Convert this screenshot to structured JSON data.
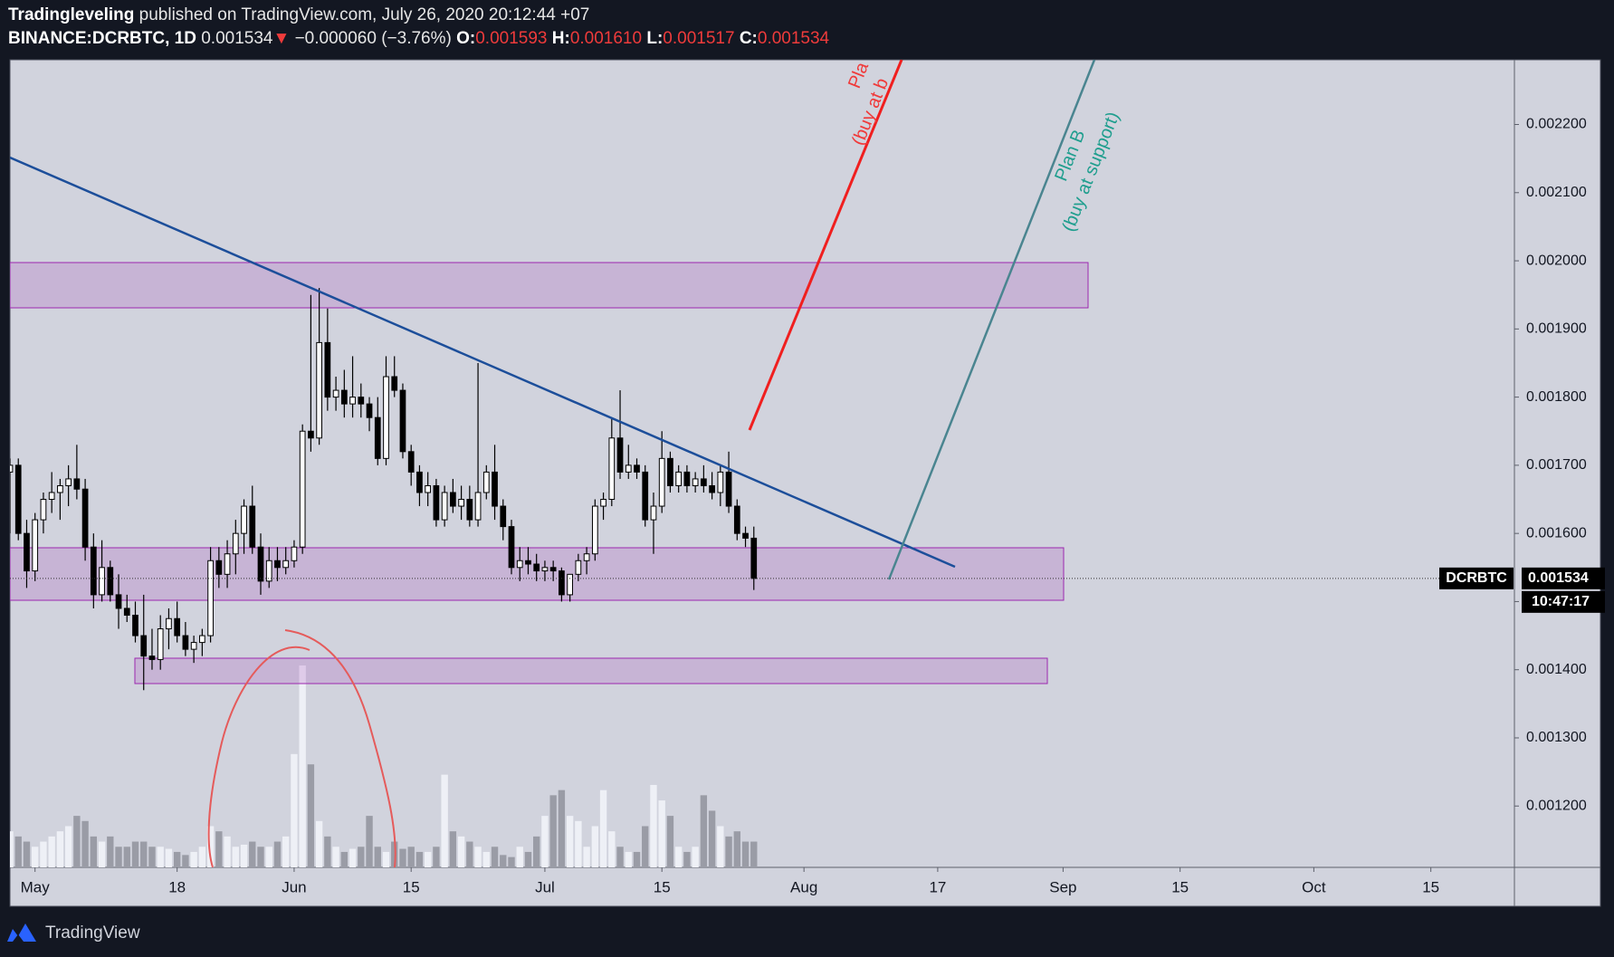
{
  "header": {
    "author": "Tradingleveling",
    "published": "published on TradingView.com, July 26, 2020 20:12:44 +07",
    "symbol": "BINANCE:DCRBTC, 1D",
    "price": "0.001534",
    "arrow": "▼",
    "change": "−0.000060 (−3.76%)",
    "o_label": "O:",
    "o": "0.001593",
    "h_label": "H:",
    "h": "0.001610",
    "l_label": "L:",
    "l": "0.001517",
    "c_label": "C:",
    "c": "0.001534"
  },
  "chart_data": {
    "type": "candlestick",
    "x": [
      "2020-04-28",
      "2020-04-29",
      "2020-04-30",
      "2020-05-01",
      "2020-05-02",
      "2020-05-03",
      "2020-05-04",
      "2020-05-05",
      "2020-05-06",
      "2020-05-07",
      "2020-05-08",
      "2020-05-09",
      "2020-05-10",
      "2020-05-11",
      "2020-05-12",
      "2020-05-13",
      "2020-05-14",
      "2020-05-15",
      "2020-05-16",
      "2020-05-17",
      "2020-05-18",
      "2020-05-19",
      "2020-05-20",
      "2020-05-21",
      "2020-05-22",
      "2020-05-23",
      "2020-05-24",
      "2020-05-25",
      "2020-05-26",
      "2020-05-27",
      "2020-05-28",
      "2020-05-29",
      "2020-05-30",
      "2020-05-31",
      "2020-06-01",
      "2020-06-02",
      "2020-06-03",
      "2020-06-04",
      "2020-06-05",
      "2020-06-06",
      "2020-06-07",
      "2020-06-08",
      "2020-06-09",
      "2020-06-10",
      "2020-06-11",
      "2020-06-12",
      "2020-06-13",
      "2020-06-14",
      "2020-06-15",
      "2020-06-16",
      "2020-06-17",
      "2020-06-18",
      "2020-06-19",
      "2020-06-20",
      "2020-06-21",
      "2020-06-22",
      "2020-06-23",
      "2020-06-24",
      "2020-06-25",
      "2020-06-26",
      "2020-06-27",
      "2020-06-28",
      "2020-06-29",
      "2020-06-30",
      "2020-07-01",
      "2020-07-02",
      "2020-07-03",
      "2020-07-04",
      "2020-07-05",
      "2020-07-06",
      "2020-07-07",
      "2020-07-08",
      "2020-07-09",
      "2020-07-10",
      "2020-07-11",
      "2020-07-12",
      "2020-07-13",
      "2020-07-14",
      "2020-07-15",
      "2020-07-16",
      "2020-07-17",
      "2020-07-18",
      "2020-07-19",
      "2020-07-20",
      "2020-07-21",
      "2020-07-22",
      "2020-07-23",
      "2020-07-24",
      "2020-07-25",
      "2020-07-26"
    ],
    "open": [
      0.00169,
      0.0017,
      0.0016,
      0.001545,
      0.00162,
      0.00165,
      0.00166,
      0.00167,
      0.00168,
      0.001665,
      0.00158,
      0.00151,
      0.00155,
      0.00151,
      0.00149,
      0.00148,
      0.00145,
      0.00142,
      0.001415,
      0.00146,
      0.001475,
      0.00145,
      0.00143,
      0.00144,
      0.00145,
      0.00156,
      0.00154,
      0.00157,
      0.0016,
      0.00164,
      0.00158,
      0.00153,
      0.00156,
      0.00155,
      0.00156,
      0.00158,
      0.00175,
      0.00174,
      0.00188,
      0.0018,
      0.00181,
      0.00179,
      0.0018,
      0.00179,
      0.00177,
      0.00171,
      0.00183,
      0.00181,
      0.00172,
      0.00169,
      0.00166,
      0.00167,
      0.00162,
      0.00166,
      0.00164,
      0.00165,
      0.00162,
      0.00166,
      0.00169,
      0.00164,
      0.00161,
      0.00155,
      0.00156,
      0.001555,
      0.001545,
      0.00155,
      0.001545,
      0.00151,
      0.00154,
      0.00156,
      0.00157,
      0.00164,
      0.00165,
      0.00174,
      0.00169,
      0.0017,
      0.00169,
      0.00162,
      0.00164,
      0.00171,
      0.00167,
      0.00169,
      0.00167,
      0.00168,
      0.00167,
      0.00166,
      0.00169,
      0.00164,
      0.0016,
      0.001593
    ],
    "high": [
      0.00171,
      0.00171,
      0.00162,
      0.00163,
      0.00166,
      0.00169,
      0.00168,
      0.0017,
      0.00173,
      0.00168,
      0.0016,
      0.00159,
      0.00156,
      0.00154,
      0.00151,
      0.0015,
      0.00151,
      0.00146,
      0.00148,
      0.00149,
      0.0015,
      0.00147,
      0.00145,
      0.00146,
      0.00158,
      0.00158,
      0.00159,
      0.00162,
      0.00165,
      0.00167,
      0.0016,
      0.00158,
      0.00158,
      0.00158,
      0.00159,
      0.00176,
      0.00195,
      0.00196,
      0.00193,
      0.00183,
      0.00184,
      0.00186,
      0.00182,
      0.0018,
      0.0018,
      0.00186,
      0.00186,
      0.00182,
      0.00173,
      0.0017,
      0.00169,
      0.00168,
      0.00167,
      0.00168,
      0.00167,
      0.00167,
      0.00185,
      0.0017,
      0.00173,
      0.00165,
      0.00162,
      0.00158,
      0.00158,
      0.00157,
      0.00156,
      0.00156,
      0.00155,
      0.00154,
      0.00157,
      0.00158,
      0.00165,
      0.00166,
      0.00177,
      0.00181,
      0.00173,
      0.00171,
      0.0017,
      0.00166,
      0.00175,
      0.00172,
      0.0017,
      0.0017,
      0.00169,
      0.0017,
      0.00169,
      0.0017,
      0.00172,
      0.00165,
      0.00161,
      0.00161
    ],
    "low": [
      0.0016,
      0.00159,
      0.00152,
      0.00153,
      0.0016,
      0.00163,
      0.00162,
      0.00164,
      0.00165,
      0.00156,
      0.00149,
      0.0015,
      0.0015,
      0.00146,
      0.00147,
      0.00144,
      0.00137,
      0.0014,
      0.0014,
      0.00143,
      0.00144,
      0.00142,
      0.00141,
      0.00142,
      0.00144,
      0.00152,
      0.00152,
      0.00154,
      0.00157,
      0.00157,
      0.00151,
      0.00152,
      0.00153,
      0.00154,
      0.00155,
      0.00157,
      0.00172,
      0.00173,
      0.00178,
      0.00178,
      0.00177,
      0.00177,
      0.00177,
      0.00175,
      0.0017,
      0.0017,
      0.0018,
      0.00171,
      0.00167,
      0.00164,
      0.00164,
      0.00161,
      0.00161,
      0.00163,
      0.00162,
      0.00161,
      0.00161,
      0.00165,
      0.00162,
      0.00159,
      0.00154,
      0.00153,
      0.00154,
      0.00153,
      0.00153,
      0.00153,
      0.0015,
      0.0015,
      0.00153,
      0.00154,
      0.00156,
      0.00162,
      0.00164,
      0.00168,
      0.00168,
      0.00168,
      0.00161,
      0.00157,
      0.00163,
      0.00166,
      0.00166,
      0.00166,
      0.00166,
      0.00166,
      0.00165,
      0.00164,
      0.00163,
      0.00159,
      0.00158,
      0.001517
    ],
    "close": [
      0.0017,
      0.0016,
      0.001545,
      0.00162,
      0.00165,
      0.00166,
      0.00167,
      0.00168,
      0.001665,
      0.00158,
      0.00151,
      0.00155,
      0.00151,
      0.00149,
      0.00148,
      0.00145,
      0.00142,
      0.001415,
      0.00146,
      0.001475,
      0.00145,
      0.00143,
      0.00144,
      0.00145,
      0.00156,
      0.00154,
      0.00157,
      0.0016,
      0.00164,
      0.00158,
      0.00153,
      0.00156,
      0.00155,
      0.00156,
      0.00158,
      0.00175,
      0.00174,
      0.00188,
      0.0018,
      0.00181,
      0.00179,
      0.0018,
      0.00179,
      0.00177,
      0.00171,
      0.00183,
      0.00181,
      0.00172,
      0.00169,
      0.00166,
      0.00167,
      0.00162,
      0.00166,
      0.00164,
      0.00165,
      0.00162,
      0.00166,
      0.00169,
      0.00164,
      0.00161,
      0.00155,
      0.00156,
      0.001555,
      0.001545,
      0.00155,
      0.001545,
      0.00151,
      0.00154,
      0.00156,
      0.00157,
      0.00164,
      0.00165,
      0.00174,
      0.00169,
      0.0017,
      0.00169,
      0.00162,
      0.00164,
      0.00171,
      0.00167,
      0.00169,
      0.00167,
      0.00168,
      0.00167,
      0.00166,
      0.00169,
      0.00164,
      0.0016,
      0.001593,
      0.001534
    ],
    "volume": [
      35,
      30,
      25,
      20,
      25,
      30,
      35,
      40,
      50,
      45,
      30,
      25,
      30,
      20,
      20,
      25,
      25,
      20,
      20,
      18,
      15,
      12,
      15,
      20,
      40,
      35,
      30,
      20,
      22,
      25,
      20,
      20,
      25,
      30,
      110,
      196,
      100,
      45,
      30,
      20,
      15,
      18,
      20,
      50,
      20,
      15,
      25,
      18,
      20,
      15,
      15,
      20,
      90,
      35,
      30,
      25,
      20,
      15,
      20,
      12,
      10,
      20,
      15,
      30,
      50,
      70,
      75,
      50,
      45,
      20,
      40,
      75,
      35,
      20,
      15,
      15,
      40,
      80,
      65,
      50,
      20,
      15,
      20,
      70,
      55,
      40,
      30,
      35,
      25,
      25
    ],
    "xlim": [
      "2020-04-28",
      "2020-10-25"
    ],
    "xticks": [
      {
        "value": "2020-05-01",
        "label": "May"
      },
      {
        "value": "2020-05-18",
        "label": "18"
      },
      {
        "value": "2020-06-01",
        "label": "Jun"
      },
      {
        "value": "2020-06-15",
        "label": "15"
      },
      {
        "value": "2020-07-01",
        "label": "Jul"
      },
      {
        "value": "2020-07-15",
        "label": "15"
      },
      {
        "value": "2020-08-01",
        "label": "Aug"
      },
      {
        "value": "2020-08-17",
        "label": "17"
      },
      {
        "value": "2020-09-01",
        "label": "Sep"
      },
      {
        "value": "2020-09-15",
        "label": "15"
      },
      {
        "value": "2020-10-01",
        "label": "Oct"
      },
      {
        "value": "2020-10-15",
        "label": "15"
      }
    ],
    "ylim": [
      0.00111,
      0.002295
    ],
    "yticks": [
      {
        "value": 0.0012,
        "label": "0.001200"
      },
      {
        "value": 0.0013,
        "label": "0.001300"
      },
      {
        "value": 0.0014,
        "label": "0.001400"
      },
      {
        "value": 0.0015,
        "label": "0.001500"
      },
      {
        "value": 0.0016,
        "label": "0.001600"
      },
      {
        "value": 0.0017,
        "label": "0.001700"
      },
      {
        "value": 0.0018,
        "label": "0.001800"
      },
      {
        "value": 0.0019,
        "label": "0.001900"
      },
      {
        "value": 0.002,
        "label": "0.002000"
      },
      {
        "value": 0.0021,
        "label": "0.002100"
      },
      {
        "value": 0.0022,
        "label": "0.002200"
      }
    ],
    "up_color": "#ffffff",
    "down_color": "#000000",
    "up_volume_color": "#eef0f6",
    "down_volume_color": "#9a9ca6",
    "price_tag": {
      "symbol": "DCRBTC",
      "value": "0.001534",
      "countdown": "10:47:17"
    },
    "annotations": {
      "plan_a_1": "Pla",
      "plan_a_2": "(buy at b",
      "plan_b_1": "Plan B",
      "plan_b_2": "(buy at support)"
    },
    "footer": "TradingView"
  }
}
